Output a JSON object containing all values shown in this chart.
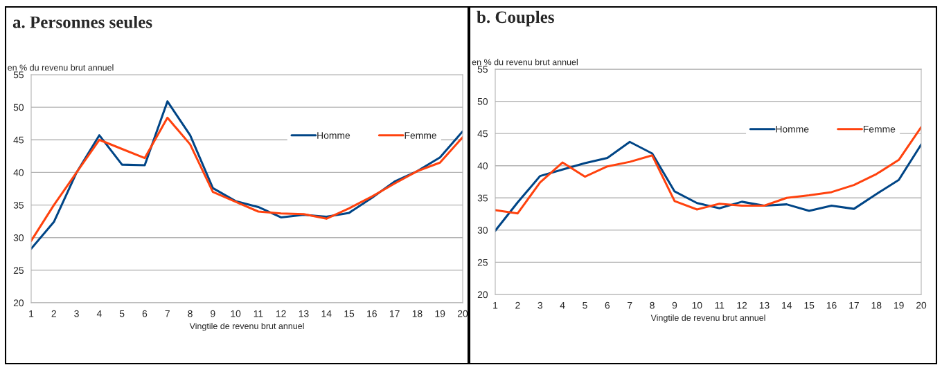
{
  "chart_data": [
    {
      "type": "line",
      "title": "a. Personnes seules",
      "xlabel": "Vingtile de revenu brut annuel",
      "ylabel": "en % du revenu brut annuel",
      "x": [
        1,
        2,
        3,
        4,
        5,
        6,
        7,
        8,
        9,
        10,
        11,
        12,
        13,
        14,
        15,
        16,
        17,
        18,
        19,
        20
      ],
      "xlim": [
        1,
        20
      ],
      "xticks": [
        1,
        2,
        3,
        4,
        5,
        6,
        7,
        8,
        9,
        10,
        11,
        12,
        13,
        14,
        15,
        16,
        17,
        18,
        19,
        20
      ],
      "ylim": [
        20,
        55
      ],
      "yticks": [
        20,
        25,
        30,
        35,
        40,
        45,
        50,
        55
      ],
      "grid": "y",
      "legend": "right",
      "series": [
        {
          "name": "Homme",
          "color": "#004586",
          "values": [
            28.3,
            32.4,
            40.0,
            45.7,
            41.2,
            41.1,
            50.9,
            45.7,
            37.6,
            35.6,
            34.7,
            33.1,
            33.5,
            33.2,
            33.8,
            36.1,
            38.6,
            40.2,
            42.3,
            46.3
          ]
        },
        {
          "name": "Femme",
          "color": "#ff420e",
          "values": [
            29.5,
            35.0,
            40.0,
            45.0,
            43.6,
            42.2,
            48.4,
            44.3,
            37.0,
            35.5,
            34.0,
            33.7,
            33.6,
            32.9,
            34.5,
            36.3,
            38.3,
            40.2,
            41.5,
            45.4
          ]
        }
      ]
    },
    {
      "type": "line",
      "title": "b. Couples",
      "xlabel": "Vingtile de revenu brut annuel",
      "ylabel": "en % du revenu brut annuel",
      "x": [
        1,
        2,
        3,
        4,
        5,
        6,
        7,
        8,
        9,
        10,
        11,
        12,
        13,
        14,
        15,
        16,
        17,
        18,
        19,
        20
      ],
      "xlim": [
        1,
        20
      ],
      "xticks": [
        1,
        2,
        3,
        4,
        5,
        6,
        7,
        8,
        9,
        10,
        11,
        12,
        13,
        14,
        15,
        16,
        17,
        18,
        19,
        20
      ],
      "ylim": [
        20,
        55
      ],
      "yticks": [
        20,
        25,
        30,
        35,
        40,
        45,
        50,
        55
      ],
      "grid": "y",
      "legend": "right",
      "series": [
        {
          "name": "Homme",
          "color": "#004586",
          "values": [
            29.9,
            34.3,
            38.4,
            39.4,
            40.4,
            41.2,
            43.7,
            41.9,
            36.0,
            34.2,
            33.4,
            34.4,
            33.8,
            34.0,
            33.0,
            33.8,
            33.3,
            35.6,
            37.8,
            43.3
          ]
        },
        {
          "name": "Femme",
          "color": "#ff420e",
          "values": [
            33.1,
            32.6,
            37.4,
            40.5,
            38.3,
            39.9,
            40.6,
            41.6,
            34.5,
            33.2,
            34.1,
            33.8,
            33.8,
            35.0,
            35.4,
            35.9,
            37.0,
            38.7,
            40.9,
            46.0
          ]
        }
      ]
    }
  ]
}
